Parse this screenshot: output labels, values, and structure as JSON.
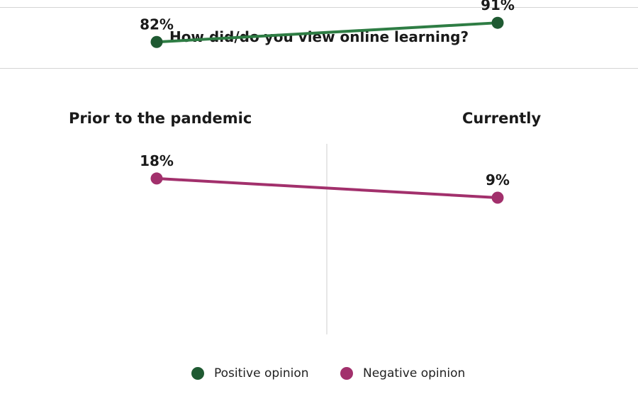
{
  "chart_data": {
    "type": "line",
    "title": "How did/do you view online learning?",
    "categories": [
      "Prior to the pandemic",
      "Currently"
    ],
    "unit": "%",
    "series": [
      {
        "name": "Positive opinion",
        "color": "#2e7d44",
        "marker_color": "#1f5a32",
        "values": [
          82,
          91
        ],
        "labels": [
          "82%",
          "91%"
        ]
      },
      {
        "name": "Negative opinion",
        "color": "#a2306c",
        "marker_color": "#a2306c",
        "values": [
          18,
          9
        ],
        "labels": [
          "18%",
          "9%"
        ]
      }
    ],
    "legend": "bottom",
    "grid": false
  }
}
